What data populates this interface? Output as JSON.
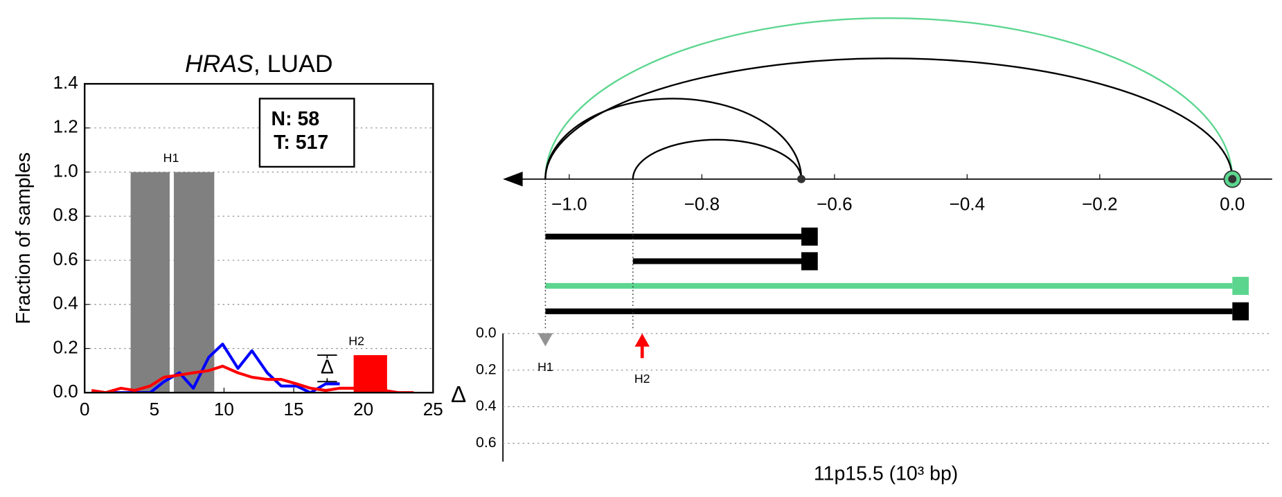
{
  "chart_data": [
    {
      "type": "bar",
      "title_gene": "HRAS",
      "title_rest": ", LUAD",
      "ylabel": "Fraction of samples",
      "xlim": [
        0,
        25
      ],
      "xticks": [
        0,
        5,
        10,
        15,
        20,
        25
      ],
      "ylim": [
        0,
        1.4
      ],
      "yticks": [
        {
          "value": 0,
          "label": "0.0"
        },
        {
          "value": 0.2,
          "label": "0.2"
        },
        {
          "value": 0.4,
          "label": "0.4"
        },
        {
          "value": 0.6,
          "label": "0.6"
        },
        {
          "value": 0.8,
          "label": "0.8"
        },
        {
          "value": 1.0,
          "label": "1.0"
        },
        {
          "value": 1.2,
          "label": "1.2"
        },
        {
          "value": 1.4,
          "label": "1.4"
        }
      ],
      "grid": true,
      "bars": [
        {
          "x0": 3.3,
          "x1": 6.1,
          "value": 1.0,
          "color": "#808080"
        },
        {
          "x0": 6.4,
          "x1": 9.3,
          "value": 1.0,
          "color": "#808080"
        },
        {
          "x0": 19.3,
          "x1": 21.7,
          "value": 0.17,
          "color": "#ff0000"
        }
      ],
      "x": [
        0.5,
        1.5,
        2.6,
        3.6,
        4.7,
        5.7,
        6.8,
        7.8,
        8.9,
        9.9,
        11.0,
        12.0,
        13.1,
        14.1,
        15.2,
        16.2,
        17.3,
        18.3,
        19.4,
        20.4,
        21.5,
        22.5,
        23.6
      ],
      "series": [
        {
          "color": "#0000ff",
          "values": [
            0,
            0,
            0,
            0,
            0,
            0.05,
            0.09,
            0.02,
            0.16,
            0.22,
            0.11,
            0.19,
            0.09,
            0.03,
            0.03,
            0.0,
            0.04,
            0.04,
            null,
            null,
            null,
            null,
            null
          ]
        },
        {
          "color": "#ff0000",
          "values": [
            0.01,
            0.0,
            0.02,
            0.01,
            0.03,
            0.07,
            0.08,
            0.09,
            0.1,
            0.12,
            0.09,
            0.07,
            0.06,
            0.06,
            0.04,
            0.02,
            0.01,
            0.02,
            0.02,
            0.01,
            0.01,
            0.0,
            0.0
          ]
        }
      ],
      "annotations": [
        {
          "text": "H1",
          "x": 6.2,
          "y": 1.06,
          "color": "#808080"
        },
        {
          "text": "H2",
          "x": 19.5,
          "y": 0.23,
          "color": "#000000"
        }
      ],
      "delta": {
        "text": "Δ",
        "x": 17.4,
        "value": 0.11,
        "error": 0.06
      },
      "counts": [
        "N: 58",
        "T: 517"
      ]
    },
    {
      "type": "arc",
      "xlim": [
        -1.1,
        0.06
      ],
      "xticks": [
        {
          "value": -1.0,
          "label": "−1.0"
        },
        {
          "value": -0.8,
          "label": "−0.8"
        },
        {
          "value": -0.6,
          "label": "−0.6"
        },
        {
          "value": -0.4,
          "label": "−0.4"
        },
        {
          "value": -0.2,
          "label": "−0.2"
        },
        {
          "value": 0.0,
          "label": "0.0"
        }
      ],
      "arcs": [
        {
          "from": -1.036,
          "to": 0.0,
          "color": "#5cd68f"
        },
        {
          "from": -1.036,
          "to": 0.0,
          "color": "#000000"
        },
        {
          "from": -1.036,
          "to": -0.65,
          "color": "#000000"
        },
        {
          "from": -0.904,
          "to": -0.65,
          "color": "#000000"
        }
      ],
      "spans": [
        {
          "from": -1.036,
          "to": -0.65,
          "color": "#000000"
        },
        {
          "from": -0.904,
          "to": -0.65,
          "color": "#000000"
        },
        {
          "from": -1.036,
          "to": 0.0,
          "color": "#5cd68f"
        },
        {
          "from": -1.036,
          "to": 0.0,
          "color": "#000000"
        }
      ]
    },
    {
      "type": "scatter",
      "xlim": [
        -1.1,
        0.06
      ],
      "xlabel": "11p15.5 (10³ bp)",
      "ylabel": "Δ",
      "ylim": [
        0,
        0.7
      ],
      "yticks": [
        {
          "value": 0,
          "label": "0.0"
        },
        {
          "value": 0.2,
          "label": "0.2"
        },
        {
          "value": 0.4,
          "label": "0.4"
        },
        {
          "value": 0.6,
          "label": "0.6"
        }
      ],
      "grid": true,
      "points": [
        {
          "label": "H1",
          "x": -1.036,
          "y": 0.03,
          "color": "#808080",
          "shape": "triangle"
        },
        {
          "label": "H2",
          "x": -0.89,
          "y": 0.0,
          "color": "#ff0000",
          "shape": "arrow"
        }
      ]
    }
  ]
}
